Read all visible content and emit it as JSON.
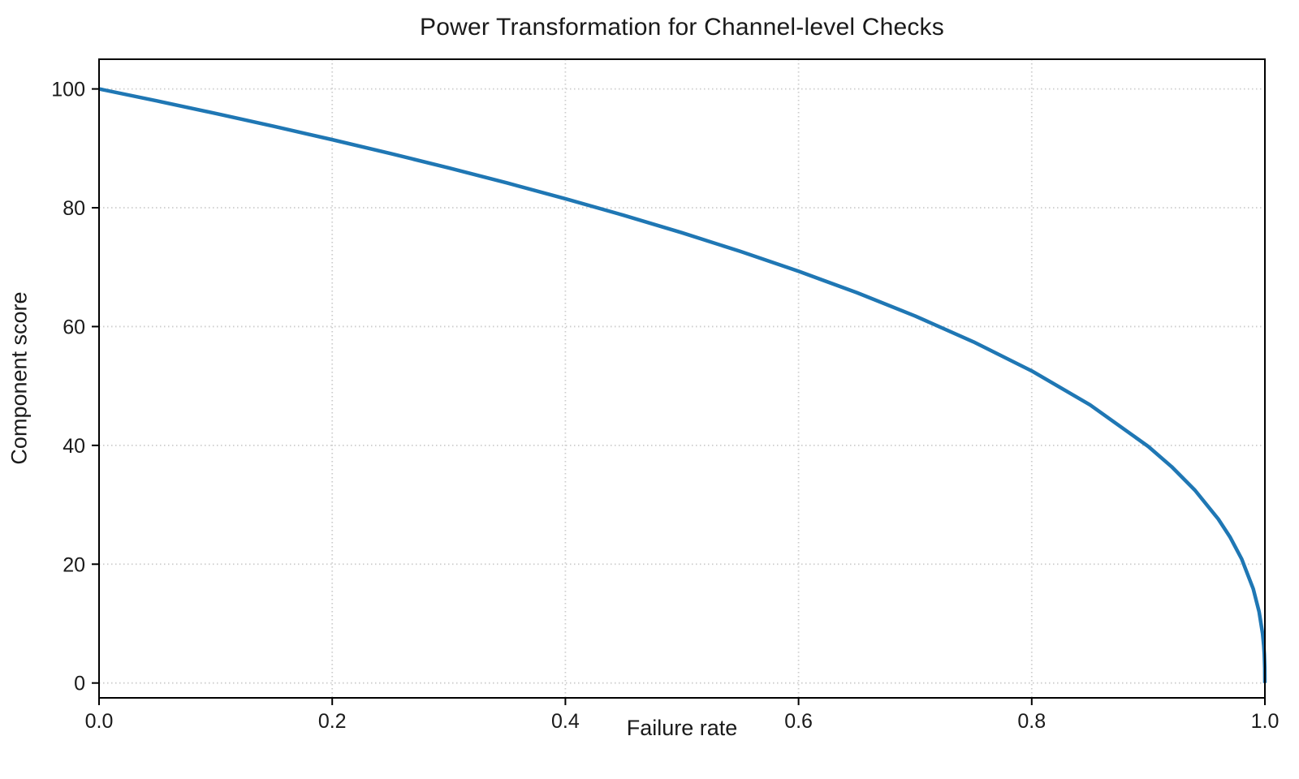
{
  "chart_data": {
    "type": "line",
    "title": "Power Transformation for Channel-level Checks",
    "xlabel": "Failure rate",
    "ylabel": "Component score",
    "xlim": [
      0.0,
      1.0
    ],
    "ylim": [
      -2.5,
      105
    ],
    "grid": true,
    "grid_style": "dotted",
    "grid_color": "#cccccc",
    "legend": "none",
    "series": [
      {
        "name": "component-score-curve",
        "color": "#1f77b4",
        "line_width": 4.5,
        "formula": "score = 100 * (1 - failure_rate)^0.4",
        "points": [
          [
            0.0,
            100.0
          ],
          [
            0.05,
            97.97
          ],
          [
            0.1,
            95.87
          ],
          [
            0.15,
            93.71
          ],
          [
            0.2,
            91.46
          ],
          [
            0.25,
            89.13
          ],
          [
            0.3,
            86.7
          ],
          [
            0.35,
            84.17
          ],
          [
            0.4,
            81.52
          ],
          [
            0.45,
            78.73
          ],
          [
            0.5,
            75.79
          ],
          [
            0.55,
            72.66
          ],
          [
            0.6,
            69.31
          ],
          [
            0.65,
            65.71
          ],
          [
            0.7,
            61.78
          ],
          [
            0.75,
            57.43
          ],
          [
            0.8,
            52.53
          ],
          [
            0.85,
            46.82
          ],
          [
            0.9,
            39.81
          ],
          [
            0.92,
            36.41
          ],
          [
            0.94,
            32.45
          ],
          [
            0.96,
            27.6
          ],
          [
            0.97,
            24.6
          ],
          [
            0.98,
            20.91
          ],
          [
            0.99,
            15.85
          ],
          [
            0.995,
            12.01
          ],
          [
            0.998,
            8.33
          ],
          [
            0.999,
            6.31
          ],
          [
            0.9995,
            4.78
          ],
          [
            0.9999,
            2.51
          ],
          [
            1.0,
            0.0
          ]
        ]
      }
    ],
    "xticks": {
      "values": [
        0.0,
        0.2,
        0.4,
        0.6,
        0.8,
        1.0
      ],
      "labels": [
        "0.0",
        "0.2",
        "0.4",
        "0.6",
        "0.8",
        "1.0"
      ]
    },
    "yticks": {
      "values": [
        0,
        20,
        40,
        60,
        80,
        100
      ],
      "labels": [
        "0",
        "20",
        "40",
        "60",
        "80",
        "100"
      ]
    }
  },
  "figure": {
    "background": "#ffffff",
    "spine_color": "#000000",
    "text_color": "#1a1a1a"
  }
}
